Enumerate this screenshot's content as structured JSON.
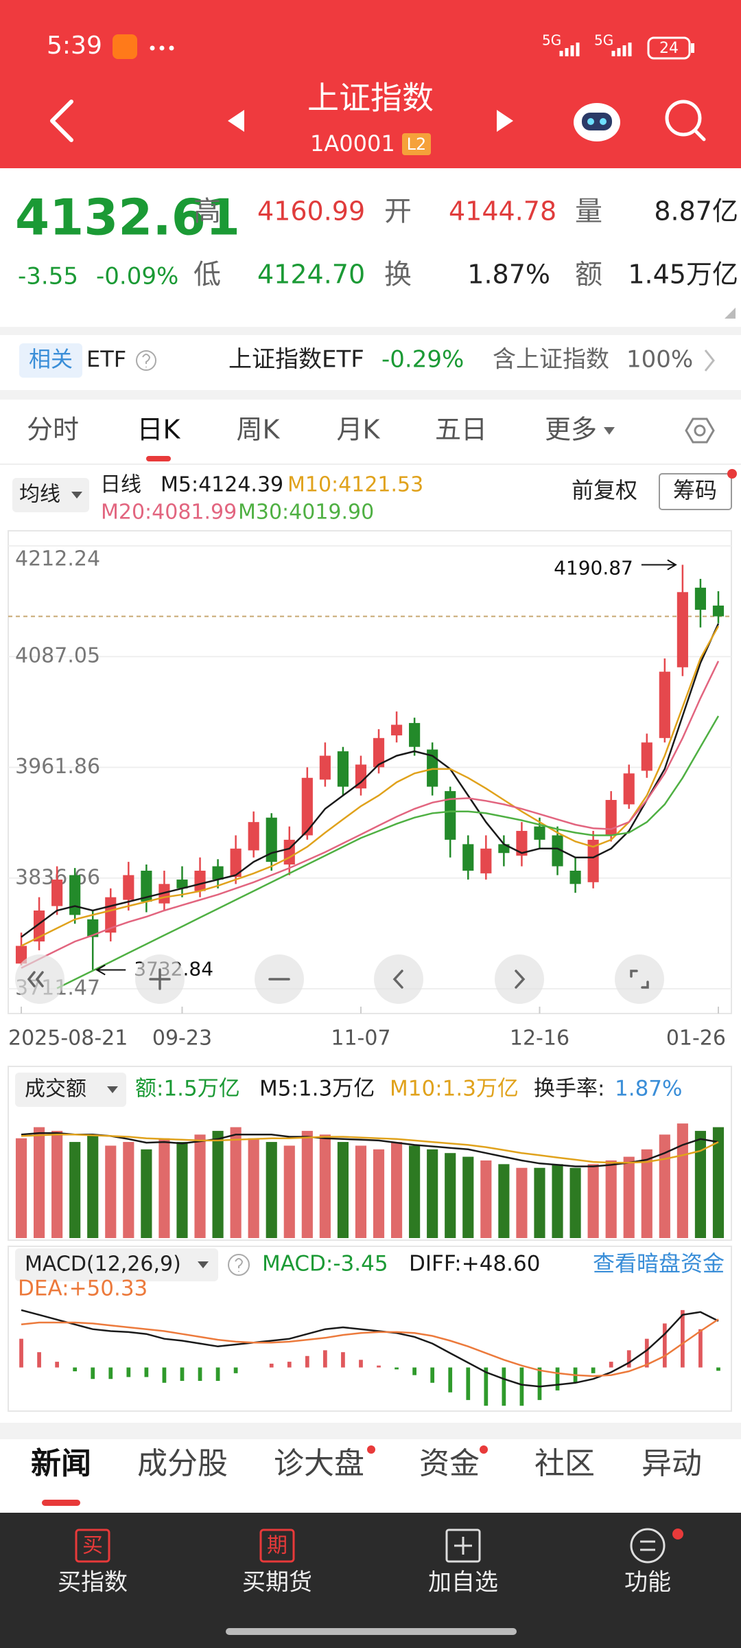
{
  "status_bar": {
    "time": "5:39",
    "network": [
      "5G",
      "5G"
    ],
    "battery": "24"
  },
  "header": {
    "title": "上证指数",
    "code": "1A0001",
    "badge": "L2"
  },
  "quote": {
    "price": "4132.61",
    "change": "-3.55",
    "change_pct": "-0.09%",
    "high_label": "高",
    "high": "4160.99",
    "open_label": "开",
    "open": "4144.78",
    "volume_label": "量",
    "volume": "8.87亿",
    "low_label": "低",
    "low": "4124.70",
    "turnover_label": "换",
    "turnover": "1.87%",
    "amount_label": "额",
    "amount": "1.45万亿"
  },
  "related_etf": {
    "tag": "相关",
    "label": "ETF",
    "name": "上证指数ETF",
    "change": "-0.29%",
    "holding_label": "含上证指数",
    "holding": "100%"
  },
  "tabs": [
    "分时",
    "日K",
    "周K",
    "月K",
    "五日",
    "更多"
  ],
  "kline": {
    "type": "candlestick",
    "selector": "均线",
    "period": "日线",
    "adjust": "前复权",
    "chips_button": "筹码",
    "up_color": "#e5484d",
    "down_color": "#238a2a",
    "categories": [
      "2025-08-21",
      null,
      null,
      null,
      null,
      null,
      null,
      null,
      null,
      "09-23",
      null,
      null,
      null,
      null,
      null,
      null,
      null,
      null,
      null,
      "11-07",
      null,
      null,
      null,
      null,
      null,
      null,
      null,
      null,
      null,
      "12-16",
      null,
      null,
      null,
      null,
      null,
      null,
      null,
      null,
      null,
      "01-26"
    ],
    "open": [
      3740,
      3765,
      3805,
      3840,
      3790,
      3775,
      3812,
      3845,
      3808,
      3835,
      3822,
      3850,
      3838,
      3868,
      3905,
      3852,
      3885,
      3948,
      3980,
      3938,
      3962,
      3998,
      4012,
      3982,
      3935,
      3875,
      3842,
      3875,
      3862,
      3895,
      3885,
      3845,
      3832,
      3885,
      3920,
      3958,
      3995,
      4075,
      4165,
      4144.78
    ],
    "high": [
      3775,
      3815,
      3850,
      3848,
      3800,
      3825,
      3855,
      3852,
      3845,
      3850,
      3860,
      3858,
      3885,
      3912,
      3910,
      3895,
      3962,
      3990,
      3985,
      3975,
      4005,
      4025,
      4018,
      3990,
      3940,
      3885,
      3885,
      3885,
      3900,
      3905,
      3895,
      3860,
      3890,
      3935,
      3965,
      4000,
      4085,
      4190.87,
      4175,
      4160.99
    ],
    "low": [
      3738,
      3755,
      3795,
      3785,
      3732.84,
      3765,
      3800,
      3798,
      3800,
      3815,
      3815,
      3825,
      3830,
      3860,
      3845,
      3840,
      3880,
      3940,
      3930,
      3930,
      3955,
      3990,
      3975,
      3930,
      3860,
      3835,
      3835,
      3850,
      3850,
      3870,
      3840,
      3820,
      3825,
      3878,
      3915,
      3950,
      3990,
      4065,
      4120,
      4124.7
    ],
    "close": [
      3760,
      3800,
      3835,
      3795,
      3770,
      3815,
      3840,
      3810,
      3830,
      3825,
      3845,
      3835,
      3870,
      3900,
      3855,
      3880,
      3950,
      3975,
      3940,
      3965,
      3995,
      4010,
      3985,
      3940,
      3880,
      3845,
      3870,
      3865,
      3890,
      3880,
      3850,
      3830,
      3880,
      3925,
      3955,
      3990,
      4070,
      4160,
      4140,
      4132.61
    ],
    "ma": [
      {
        "name": "M5:4124.39",
        "color": "#1a1a1a",
        "values": [
          3770,
          3785,
          3800,
          3805,
          3800,
          3805,
          3810,
          3815,
          3820,
          3825,
          3830,
          3835,
          3840,
          3855,
          3865,
          3870,
          3890,
          3915,
          3930,
          3945,
          3965,
          3975,
          3980,
          3975,
          3960,
          3930,
          3900,
          3875,
          3865,
          3870,
          3870,
          3860,
          3860,
          3870,
          3890,
          3925,
          3960,
          4020,
          4080,
          4124.39
        ]
      },
      {
        "name": "M10:4121.53",
        "color": "#e0a21c",
        "values": [
          3760,
          3770,
          3780,
          3790,
          3795,
          3800,
          3805,
          3810,
          3815,
          3818,
          3822,
          3828,
          3835,
          3842,
          3850,
          3860,
          3872,
          3888,
          3903,
          3918,
          3930,
          3945,
          3955,
          3960,
          3960,
          3950,
          3938,
          3925,
          3912,
          3900,
          3888,
          3878,
          3872,
          3880,
          3900,
          3930,
          3975,
          4030,
          4085,
          4121.53
        ]
      },
      {
        "name": "M20:4081.99",
        "color": "#e2657f",
        "values": [
          3735,
          3745,
          3755,
          3765,
          3772,
          3780,
          3787,
          3793,
          3800,
          3806,
          3812,
          3818,
          3825,
          3832,
          3840,
          3848,
          3857,
          3866,
          3876,
          3886,
          3896,
          3906,
          3915,
          3922,
          3926,
          3927,
          3924,
          3920,
          3915,
          3909,
          3903,
          3897,
          3893,
          3892,
          3900,
          3925,
          3955,
          3995,
          4040,
          4081.99
        ]
      },
      {
        "name": "M30:4019.90",
        "color": "#4fb043",
        "values": [
          null,
          null,
          3712,
          3722,
          3732,
          3742,
          3752,
          3762,
          3772,
          3782,
          3792,
          3802,
          3812,
          3822,
          3832,
          3842,
          3852,
          3862,
          3872,
          3882,
          3890,
          3898,
          3905,
          3910,
          3912,
          3912,
          3910,
          3906,
          3902,
          3897,
          3892,
          3888,
          3885,
          3885,
          3888,
          3900,
          3920,
          3950,
          3985,
          4019.9
        ]
      }
    ],
    "ylim": [
      3711.47,
      4212.24
    ],
    "yticks": [
      4212.24,
      4087.05,
      3961.86,
      3836.66,
      3711.47
    ],
    "grid": true
  },
  "volume": {
    "type": "bar",
    "selector": "成交额",
    "amount_label": "额:1.5万亿",
    "turnover_label": "换手率:",
    "turnover": "1.87%",
    "values": [
      1.35,
      1.5,
      1.45,
      1.3,
      1.4,
      1.25,
      1.3,
      1.2,
      1.35,
      1.3,
      1.4,
      1.45,
      1.5,
      1.35,
      1.3,
      1.25,
      1.45,
      1.4,
      1.3,
      1.25,
      1.2,
      1.3,
      1.25,
      1.2,
      1.15,
      1.1,
      1.05,
      1.0,
      0.95,
      0.95,
      1.0,
      0.95,
      1.0,
      1.05,
      1.1,
      1.2,
      1.4,
      1.55,
      1.45,
      1.5
    ],
    "series": [
      {
        "name": "M5:1.3万亿",
        "color": "#1a1a1a",
        "values": [
          1.4,
          1.42,
          1.42,
          1.4,
          1.4,
          1.38,
          1.34,
          1.29,
          1.3,
          1.28,
          1.31,
          1.34,
          1.4,
          1.4,
          1.4,
          1.37,
          1.37,
          1.35,
          1.34,
          1.33,
          1.32,
          1.29,
          1.26,
          1.24,
          1.22,
          1.2,
          1.15,
          1.1,
          1.05,
          1.01,
          0.99,
          0.97,
          0.97,
          0.99,
          1.02,
          1.06,
          1.15,
          1.26,
          1.34,
          1.3
        ]
      },
      {
        "name": "M10:1.3万亿",
        "color": "#e0a21c",
        "values": [
          1.38,
          1.39,
          1.4,
          1.4,
          1.39,
          1.38,
          1.37,
          1.35,
          1.34,
          1.33,
          1.32,
          1.32,
          1.33,
          1.34,
          1.35,
          1.35,
          1.36,
          1.37,
          1.37,
          1.36,
          1.35,
          1.34,
          1.32,
          1.3,
          1.28,
          1.26,
          1.23,
          1.19,
          1.15,
          1.12,
          1.09,
          1.06,
          1.03,
          1.02,
          1.02,
          1.03,
          1.07,
          1.12,
          1.18,
          1.3
        ]
      }
    ],
    "ylim": [
      0,
      1.7
    ]
  },
  "macd": {
    "type": "macd",
    "selector": "MACD(12,26,9)",
    "macd_label": "MACD:-3.45",
    "link": "查看暗盘资金",
    "series": [
      {
        "name": "DIFF:+48.60",
        "color": "#1a1a1a",
        "values": [
          60,
          55,
          50,
          45,
          40,
          38,
          37,
          35,
          30,
          28,
          25,
          22,
          24,
          26,
          28,
          30,
          35,
          40,
          42,
          40,
          38,
          36,
          32,
          25,
          15,
          5,
          -5,
          -12,
          -18,
          -20,
          -18,
          -16,
          -12,
          -5,
          5,
          18,
          35,
          55,
          58,
          48.6
        ]
      },
      {
        "name": "DEA:+50.33",
        "color": "#ec7a3c",
        "values": [
          45,
          47,
          47,
          47,
          46,
          44,
          42,
          40,
          38,
          35,
          32,
          29,
          27,
          26,
          26,
          27,
          29,
          31,
          34,
          36,
          37,
          37,
          36,
          33,
          28,
          22,
          15,
          8,
          2,
          -3,
          -6,
          -8,
          -9,
          -8,
          -4,
          3,
          12,
          25,
          38,
          50.33
        ]
      }
    ],
    "histogram": [
      30,
      16,
      6,
      -4,
      -12,
      -12,
      -10,
      -10,
      -16,
      -14,
      -14,
      -14,
      -6,
      0,
      4,
      6,
      12,
      18,
      16,
      8,
      2,
      -2,
      -8,
      -16,
      -26,
      -34,
      -40,
      -40,
      -40,
      -34,
      -24,
      -16,
      -6,
      6,
      18,
      30,
      46,
      60,
      40,
      -3.45
    ],
    "ylim": [
      -42,
      80
    ]
  },
  "news_tabs": [
    "新闻",
    "成分股",
    "诊大盘",
    "资金",
    "社区",
    "异动"
  ],
  "bottom_nav": [
    {
      "icon": "买",
      "label": "买指数"
    },
    {
      "icon": "期",
      "label": "买期货"
    },
    {
      "label": "加自选"
    },
    {
      "label": "功能"
    }
  ]
}
